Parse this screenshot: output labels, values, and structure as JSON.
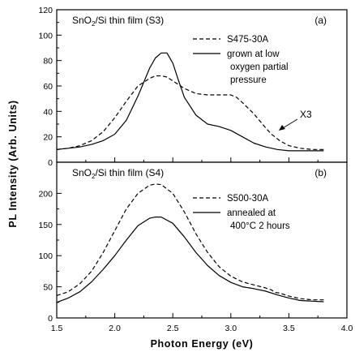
{
  "chart_data": {
    "type": "line",
    "shared_x": {
      "xlabel": "Photon Energy (eV)",
      "xlim": [
        1.5,
        4.0
      ],
      "xticks": [
        1.5,
        2.0,
        2.5,
        3.0,
        3.5,
        4.0
      ],
      "xtick_labels": [
        "1.5",
        "2.0",
        "2.5",
        "3.0",
        "3.5",
        "4.0"
      ]
    },
    "ylabel": "PL Intensity (Arb. Units)",
    "panels": [
      {
        "title": "SnO2/Si thin film (S3)",
        "tag": "(a)",
        "ylim": [
          0,
          120
        ],
        "yticks": [
          0,
          20,
          40,
          60,
          80,
          100,
          120
        ],
        "ytick_labels": [
          "0",
          "20",
          "40",
          "60",
          "80",
          "100",
          "120"
        ],
        "legend": {
          "placement": "top-right",
          "entries": [
            {
              "style": "dashed",
              "text": [
                "S475-30A"
              ]
            },
            {
              "style": "solid",
              "text": [
                "grown at low",
                "oxygen partial",
                "pressure"
              ]
            }
          ]
        },
        "annotation": "X3",
        "series": [
          {
            "style": "dashed",
            "x": [
              1.5,
              1.6,
              1.7,
              1.8,
              1.9,
              2.0,
              2.1,
              2.2,
              2.3,
              2.35,
              2.4,
              2.45,
              2.5,
              2.6,
              2.7,
              2.8,
              2.9,
              3.0,
              3.05,
              3.1,
              3.2,
              3.3,
              3.35,
              3.38,
              3.42,
              3.5,
              3.6,
              3.7,
              3.8
            ],
            "y": [
              10,
              11,
              13,
              17,
              24,
              35,
              48,
              60,
              66,
              68,
              68,
              67,
              64,
              58,
              54,
              53,
              53,
              53,
              51,
              47,
              38,
              27,
              22,
              20,
              17,
              13,
              11,
              10,
              10
            ]
          },
          {
            "style": "solid",
            "x": [
              1.5,
              1.6,
              1.7,
              1.8,
              1.9,
              2.0,
              2.1,
              2.2,
              2.3,
              2.35,
              2.4,
              2.45,
              2.5,
              2.55,
              2.6,
              2.7,
              2.8,
              2.9,
              3.0,
              3.1,
              3.2,
              3.3,
              3.4,
              3.5,
              3.6,
              3.7,
              3.8
            ],
            "y": [
              10,
              11,
              12,
              14,
              17,
              22,
              33,
              52,
              74,
              82,
              86,
              86,
              78,
              64,
              51,
              37,
              30,
              28,
              25,
              20,
              15,
              12,
              10,
              9,
              9,
              9,
              9
            ]
          }
        ]
      },
      {
        "title": "SnO2/Si thin film (S4)",
        "tag": "(b)",
        "ylim": [
          0,
          250
        ],
        "yticks": [
          0,
          50,
          100,
          150,
          200
        ],
        "ytick_labels": [
          "0",
          "50",
          "100",
          "150",
          "200"
        ],
        "legend": {
          "placement": "top-right",
          "entries": [
            {
              "style": "dashed",
              "text": [
                "S500-30A"
              ]
            },
            {
              "style": "solid",
              "text": [
                "annealed at",
                "400°C 2 hours"
              ]
            }
          ]
        },
        "series": [
          {
            "style": "dashed",
            "x": [
              1.5,
              1.6,
              1.7,
              1.8,
              1.9,
              2.0,
              2.1,
              2.2,
              2.3,
              2.35,
              2.4,
              2.5,
              2.6,
              2.7,
              2.8,
              2.9,
              3.0,
              3.1,
              3.2,
              3.3,
              3.35,
              3.38,
              3.42,
              3.5,
              3.6,
              3.7,
              3.8
            ],
            "y": [
              36,
              42,
              55,
              75,
              105,
              140,
              175,
              200,
              213,
              215,
              214,
              200,
              170,
              135,
              105,
              82,
              67,
              58,
              53,
              48,
              45,
              41,
              40,
              35,
              31,
              29,
              29
            ]
          },
          {
            "style": "solid",
            "x": [
              1.5,
              1.6,
              1.7,
              1.8,
              1.9,
              2.0,
              2.1,
              2.2,
              2.3,
              2.35,
              2.4,
              2.5,
              2.6,
              2.7,
              2.8,
              2.9,
              3.0,
              3.1,
              3.2,
              3.3,
              3.4,
              3.5,
              3.6,
              3.7,
              3.8
            ],
            "y": [
              25,
              32,
              42,
              58,
              78,
              100,
              125,
              148,
              160,
              162,
              162,
              152,
              130,
              105,
              84,
              68,
              57,
              50,
              47,
              43,
              37,
              32,
              28,
              27,
              26
            ]
          }
        ]
      }
    ]
  }
}
